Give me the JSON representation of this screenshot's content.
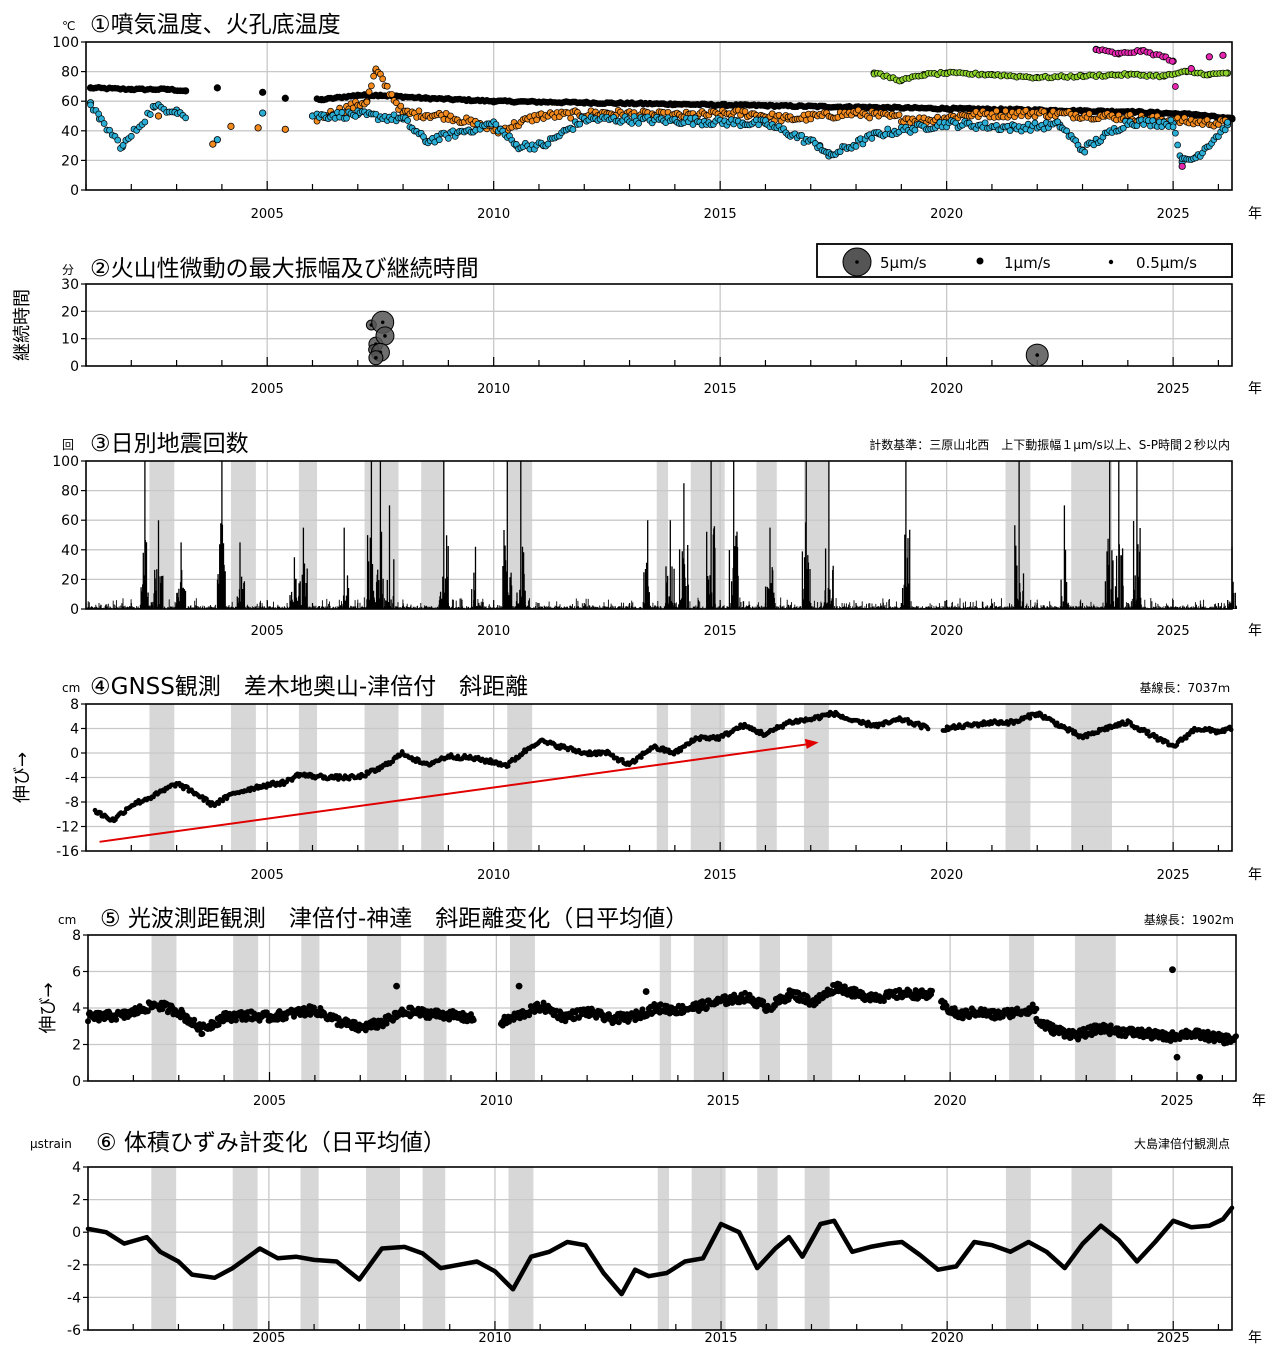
{
  "chart_data": [
    {
      "type": "scatter",
      "title": "①噴気温度、火孔底温度",
      "unit": "℃",
      "ylim": [
        0,
        100
      ],
      "yticks": [
        "100",
        "80",
        "60",
        "40",
        "20",
        "0"
      ],
      "xlim": [
        2001.0,
        2026.3
      ],
      "xticks": [
        "2005",
        "2010",
        "2015",
        "2020",
        "2025"
      ],
      "xunit": "年",
      "series": [
        {
          "color": "#000000",
          "points": [
            [
              2001.1,
              69
            ],
            [
              2002.0,
              68
            ],
            [
              2002.8,
              68
            ],
            [
              2003.2,
              67
            ],
            [
              2003.9,
              69
            ],
            [
              2004.9,
              66
            ],
            [
              2005.4,
              62
            ],
            [
              2006.2,
              61
            ],
            [
              2007.0,
              64
            ],
            [
              2007.5,
              64
            ],
            [
              2008.5,
              62
            ],
            [
              2010.0,
              60
            ],
            [
              2012.0,
              59
            ],
            [
              2014.0,
              58
            ],
            [
              2016.0,
              57
            ],
            [
              2018.0,
              56
            ],
            [
              2020.0,
              55
            ],
            [
              2022.0,
              54
            ],
            [
              2024.0,
              53
            ],
            [
              2025.5,
              51
            ],
            [
              2026.3,
              48
            ]
          ]
        },
        {
          "color": "#f28a1e",
          "points": [
            [
              2002.6,
              50
            ],
            [
              2003.8,
              31
            ],
            [
              2004.2,
              43
            ],
            [
              2004.8,
              42
            ],
            [
              2005.4,
              41
            ],
            [
              2007.2,
              60
            ],
            [
              2007.4,
              81
            ],
            [
              2008.0,
              52
            ],
            [
              2009.0,
              50
            ],
            [
              2010.1,
              40
            ],
            [
              2011.0,
              50
            ],
            [
              2012.5,
              52
            ],
            [
              2014.0,
              50
            ],
            [
              2015.5,
              52
            ],
            [
              2016.5,
              48
            ],
            [
              2018.0,
              52
            ],
            [
              2019.5,
              47
            ],
            [
              2020.5,
              51
            ],
            [
              2022.0,
              52
            ],
            [
              2023.5,
              50
            ],
            [
              2024.5,
              48
            ],
            [
              2025.5,
              46
            ],
            [
              2026.2,
              45
            ]
          ]
        },
        {
          "color": "#2aaed6",
          "points": [
            [
              2001.1,
              59
            ],
            [
              2001.3,
              48
            ],
            [
              2001.8,
              29
            ],
            [
              2002.5,
              56
            ],
            [
              2003.0,
              54
            ],
            [
              2003.9,
              34
            ],
            [
              2004.9,
              52
            ],
            [
              2006.0,
              50
            ],
            [
              2007.0,
              51
            ],
            [
              2008.0,
              48
            ],
            [
              2008.5,
              33
            ],
            [
              2010.0,
              45
            ],
            [
              2010.5,
              30
            ],
            [
              2011.1,
              30
            ],
            [
              2012.0,
              48
            ],
            [
              2014.0,
              47
            ],
            [
              2016.0,
              45
            ],
            [
              2017.2,
              30
            ],
            [
              2017.4,
              23
            ],
            [
              2018.5,
              38
            ],
            [
              2020.0,
              45
            ],
            [
              2021.5,
              42
            ],
            [
              2022.5,
              44
            ],
            [
              2023.0,
              27
            ],
            [
              2024.0,
              46
            ],
            [
              2025.0,
              45
            ],
            [
              2025.2,
              19
            ],
            [
              2025.5,
              22
            ],
            [
              2026.2,
              44
            ]
          ]
        },
        {
          "color": "#8bd12a",
          "points": [
            [
              2018.4,
              79
            ],
            [
              2019.0,
              74
            ],
            [
              2019.5,
              78
            ],
            [
              2020.0,
              79
            ],
            [
              2021.0,
              78
            ],
            [
              2022.0,
              76
            ],
            [
              2023.0,
              77
            ],
            [
              2024.0,
              78
            ],
            [
              2024.8,
              77
            ],
            [
              2025.3,
              80
            ],
            [
              2025.8,
              78
            ],
            [
              2026.2,
              79
            ]
          ]
        },
        {
          "color": "#e626b0",
          "points": [
            [
              2023.3,
              95
            ],
            [
              2023.8,
              92
            ],
            [
              2024.3,
              94
            ],
            [
              2024.8,
              90
            ],
            [
              2025.0,
              87
            ],
            [
              2025.2,
              16
            ],
            [
              2025.4,
              82
            ],
            [
              2025.8,
              90
            ],
            [
              2026.1,
              91
            ]
          ]
        }
      ]
    },
    {
      "type": "scatter",
      "title": "②火山性微動の最大振幅及び継続時間",
      "unit": "分",
      "ylabel": "継続時間",
      "ylim": [
        0,
        30
      ],
      "yticks": [
        "30",
        "20",
        "10",
        "0"
      ],
      "xlim": [
        2001.0,
        2026.3
      ],
      "xticks": [
        "2005",
        "2010",
        "2015",
        "2020",
        "2025"
      ],
      "xunit": "年",
      "legend": [
        "5μm/s",
        "1μm/s",
        "0.5μm/s"
      ],
      "events": [
        [
          2007.3,
          15,
          2
        ],
        [
          2007.55,
          16,
          5
        ],
        [
          2007.4,
          8,
          3
        ],
        [
          2007.6,
          11,
          4
        ],
        [
          2007.35,
          6,
          2
        ],
        [
          2007.5,
          5,
          4
        ],
        [
          2007.4,
          3,
          3
        ],
        [
          2022.0,
          4,
          5
        ]
      ]
    },
    {
      "type": "bar",
      "title": "③日別地震回数",
      "unit": "回",
      "note": "計数基準：三原山北西　上下動振幅１μm/s以上、S-P時間２秒以内",
      "ylim": [
        0,
        100
      ],
      "yticks": [
        "100",
        "80",
        "60",
        "40",
        "20",
        "0"
      ],
      "xlim": [
        2001.0,
        2026.3
      ],
      "xticks": [
        "2005",
        "2010",
        "2015",
        "2020",
        "2025"
      ],
      "xunit": "年",
      "spikes": [
        [
          2002.3,
          100
        ],
        [
          2002.6,
          60
        ],
        [
          2003.1,
          45
        ],
        [
          2004.0,
          100
        ],
        [
          2004.4,
          45
        ],
        [
          2005.6,
          35
        ],
        [
          2005.8,
          55
        ],
        [
          2006.7,
          55
        ],
        [
          2007.3,
          100
        ],
        [
          2007.5,
          100
        ],
        [
          2007.7,
          70
        ],
        [
          2008.9,
          100
        ],
        [
          2009.6,
          42
        ],
        [
          2010.3,
          100
        ],
        [
          2010.6,
          100
        ],
        [
          2013.4,
          60
        ],
        [
          2013.9,
          60
        ],
        [
          2014.2,
          85
        ],
        [
          2014.8,
          100
        ],
        [
          2015.3,
          100
        ],
        [
          2016.1,
          55
        ],
        [
          2016.9,
          100
        ],
        [
          2017.4,
          100
        ],
        [
          2019.1,
          100
        ],
        [
          2021.6,
          100
        ],
        [
          2022.6,
          70
        ],
        [
          2023.6,
          100
        ],
        [
          2023.8,
          100
        ],
        [
          2024.2,
          100
        ],
        [
          2026.3,
          42
        ]
      ]
    },
    {
      "type": "line",
      "title": "④GNSS観測　差木地奥山-津倍付　斜距離",
      "unit": "cm",
      "ylabel": "伸び→",
      "note": "基線長：7037ｍ",
      "ylim": [
        -16,
        8
      ],
      "yticks": [
        "8",
        "4",
        "0",
        "-4",
        "-8",
        "-12",
        "-16"
      ],
      "xlim": [
        2001.0,
        2026.3
      ],
      "xticks": [
        "2005",
        "2010",
        "2015",
        "2020",
        "2025"
      ],
      "xunit": "年",
      "x": [
        2001.2,
        2001.6,
        2002.0,
        2002.5,
        2003.0,
        2003.4,
        2003.8,
        2004.3,
        2004.8,
        2005.2,
        2005.4,
        2005.7,
        2006.0,
        2006.5,
        2007.0,
        2007.5,
        2008.0,
        2008.5,
        2009.0,
        2009.5,
        2010.0,
        2010.3,
        2010.6,
        2011.0,
        2011.5,
        2012.0,
        2012.5,
        2013.0,
        2013.5,
        2014.0,
        2014.5,
        2015.0,
        2015.5,
        2016.0,
        2016.5,
        2017.0,
        2017.5,
        2018.0,
        2018.5,
        2019.0,
        2019.6,
        2020.0,
        2020.5,
        2021.0,
        2021.5,
        2022.0,
        2022.5,
        2023.0,
        2023.5,
        2024.0,
        2024.5,
        2025.0,
        2025.5,
        2026.0,
        2026.3
      ],
      "values": [
        -9.5,
        -11,
        -8.5,
        -7,
        -5,
        -6.5,
        -8.5,
        -6.5,
        -5.5,
        -5,
        -4.8,
        -3.5,
        -3.8,
        -4,
        -4,
        -2.5,
        0,
        -2,
        -0.5,
        -0.8,
        -1.5,
        -2,
        -0.2,
        2,
        1,
        0,
        0,
        -2,
        1,
        0,
        2.5,
        2.5,
        4.5,
        3,
        5,
        5.5,
        6.5,
        5,
        4.5,
        5.5,
        4,
        4,
        4.5,
        5,
        5,
        6.5,
        4.5,
        2.5,
        4,
        5,
        3,
        1,
        4,
        3.5,
        4
      ],
      "trend": [
        [
          2001.3,
          -14.5
        ],
        [
          2017.0,
          1.5
        ]
      ]
    },
    {
      "type": "line",
      "title": "⑤ 光波測距観測　津倍付-神達　斜距離変化（日平均値）",
      "unit": "cm",
      "ylabel": "伸び→",
      "note": "基線長：1902m",
      "ylim": [
        0,
        8
      ],
      "yticks": [
        "8",
        "6",
        "4",
        "2",
        "0"
      ],
      "xlim": [
        2001.0,
        2026.3
      ],
      "xticks": [
        "2005",
        "2010",
        "2015",
        "2020",
        "2025"
      ],
      "xunit": "年",
      "segments": [
        {
          "x": [
            2001.0,
            2001.8,
            2002.5,
            2003.0,
            2003.5,
            2004.0,
            2004.5,
            2005.0,
            2005.5,
            2006.0,
            2006.5,
            2007.0,
            2007.5,
            2008.0,
            2008.5,
            2009.0,
            2009.5
          ],
          "values": [
            3.5,
            3.6,
            4.2,
            3.8,
            2.8,
            3.5,
            3.6,
            3.5,
            3.7,
            3.9,
            3.3,
            2.9,
            3.2,
            3.8,
            3.7,
            3.6,
            3.4
          ]
        },
        {
          "x": [
            2010.1,
            2010.5,
            2011.0,
            2011.5,
            2012.0,
            2012.5,
            2013.0,
            2013.5,
            2014.0,
            2014.5,
            2015.0,
            2015.5,
            2016.0,
            2016.5,
            2017.0,
            2017.5,
            2018.0,
            2018.5,
            2019.0,
            2019.6
          ],
          "values": [
            3.2,
            3.6,
            4.1,
            3.5,
            3.8,
            3.4,
            3.5,
            4.0,
            3.9,
            4.1,
            4.4,
            4.6,
            4.0,
            4.8,
            4.3,
            5.2,
            4.7,
            4.6,
            4.8,
            4.7
          ]
        },
        {
          "x": [
            2019.8,
            2020.2,
            2020.6,
            2021.0,
            2021.5,
            2021.9
          ],
          "values": [
            4.2,
            3.6,
            3.8,
            3.6,
            3.8,
            4.0
          ]
        },
        {
          "x": [
            2021.9,
            2022.3,
            2022.8,
            2023.3,
            2023.8,
            2024.3,
            2024.8,
            2025.2,
            2025.6,
            2026.0,
            2026.3
          ],
          "values": [
            3.3,
            2.8,
            2.5,
            2.9,
            2.7,
            2.6,
            2.4,
            2.6,
            2.5,
            2.3,
            2.3
          ]
        }
      ],
      "outliers": [
        [
          2007.8,
          5.2
        ],
        [
          2010.5,
          5.2
        ],
        [
          2013.3,
          4.9
        ],
        [
          2024.9,
          6.1
        ],
        [
          2025.0,
          1.3
        ],
        [
          2025.5,
          0.2
        ]
      ]
    },
    {
      "type": "line",
      "title": "⑥ 体積ひずみ計変化（日平均値）",
      "unit": "μstrain",
      "note": "大島津倍付観測点",
      "ylim": [
        -6,
        4
      ],
      "yticks": [
        "4",
        "2",
        "0",
        "-2",
        "-4",
        "-6"
      ],
      "xlim": [
        2001.0,
        2026.3
      ],
      "xticks": [
        "2005",
        "2010",
        "2015",
        "2020",
        "2025"
      ],
      "xunit": "年",
      "x": [
        2001.0,
        2001.4,
        2001.8,
        2002.3,
        2002.6,
        2003.0,
        2003.3,
        2003.8,
        2004.2,
        2004.8,
        2005.2,
        2005.6,
        2006.0,
        2006.5,
        2007.0,
        2007.5,
        2008.0,
        2008.4,
        2008.8,
        2009.2,
        2009.6,
        2010.0,
        2010.4,
        2010.8,
        2011.2,
        2011.6,
        2012.0,
        2012.4,
        2012.8,
        2013.1,
        2013.4,
        2013.8,
        2014.2,
        2014.6,
        2015.0,
        2015.4,
        2015.8,
        2016.2,
        2016.5,
        2016.8,
        2017.2,
        2017.5,
        2017.9,
        2018.3,
        2018.7,
        2019.0,
        2019.4,
        2019.8,
        2020.2,
        2020.6,
        2021.0,
        2021.4,
        2021.8,
        2022.2,
        2022.6,
        2023.0,
        2023.4,
        2023.8,
        2024.2,
        2024.6,
        2025.0,
        2025.4,
        2025.8,
        2026.1,
        2026.3
      ],
      "values": [
        0.2,
        0.0,
        -0.7,
        -0.3,
        -1.2,
        -1.8,
        -2.6,
        -2.8,
        -2.2,
        -1.0,
        -1.6,
        -1.5,
        -1.7,
        -1.8,
        -2.9,
        -1.0,
        -0.9,
        -1.3,
        -2.2,
        -2.0,
        -1.8,
        -2.4,
        -3.5,
        -1.5,
        -1.2,
        -0.6,
        -0.8,
        -2.5,
        -3.8,
        -2.3,
        -2.7,
        -2.5,
        -1.8,
        -1.6,
        0.5,
        0.0,
        -2.2,
        -1.0,
        -0.3,
        -1.5,
        0.5,
        0.7,
        -1.2,
        -0.9,
        -0.7,
        -0.6,
        -1.4,
        -2.3,
        -2.1,
        -0.6,
        -0.8,
        -1.2,
        -0.6,
        -1.2,
        -2.2,
        -0.7,
        0.4,
        -0.5,
        -1.8,
        -0.6,
        0.7,
        0.3,
        0.4,
        0.8,
        1.5
      ]
    }
  ],
  "gray_bands": [
    [
      2002.4,
      2002.95
    ],
    [
      2004.2,
      2004.75
    ],
    [
      2005.7,
      2006.1
    ],
    [
      2007.15,
      2007.9
    ],
    [
      2008.4,
      2008.9
    ],
    [
      2010.3,
      2010.85
    ],
    [
      2013.6,
      2013.85
    ],
    [
      2014.35,
      2015.1
    ],
    [
      2015.8,
      2016.25
    ],
    [
      2016.85,
      2017.4
    ],
    [
      2021.3,
      2021.85
    ],
    [
      2022.75,
      2023.65
    ]
  ]
}
